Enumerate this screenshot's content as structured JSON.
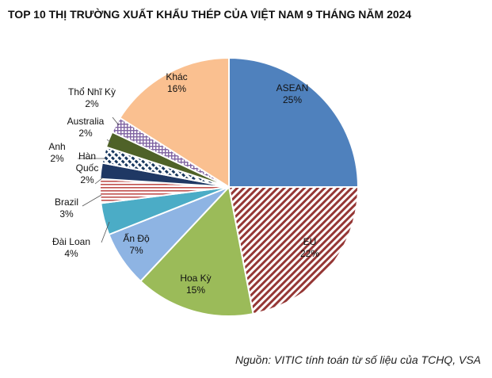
{
  "chart_data": {
    "type": "pie",
    "title": "TOP 10 THỊ TRƯỜNG XUẤT KHẨU THÉP CỦA VIỆT NAM 9 THÁNG NĂM 2024",
    "source": "Nguồn: VITIC tính toán từ số liệu của TCHQ, VSA",
    "slices": [
      {
        "label": "ASEAN",
        "value": 25,
        "text": "25%",
        "color": "#4f81bd",
        "pattern": "solid"
      },
      {
        "label": "EU",
        "value": 22,
        "text": "22%",
        "color": "#953735",
        "pattern": "diagonal"
      },
      {
        "label": "Hoa Kỳ",
        "value": 15,
        "text": "15%",
        "color": "#9bbb59",
        "pattern": "solid"
      },
      {
        "label": "Ấn Độ",
        "value": 7,
        "text": "7%",
        "color": "#8eb4e3",
        "pattern": "solid"
      },
      {
        "label": "Đài Loan",
        "value": 4,
        "text": "4%",
        "color": "#4bacc6",
        "pattern": "solid"
      },
      {
        "label": "Brazil",
        "value": 3,
        "text": "3%",
        "color": "#c0504d",
        "pattern": "horizontal"
      },
      {
        "label": "Hàn Quốc",
        "value": 2,
        "text": "2%",
        "color": "#1f3864",
        "pattern": "solid"
      },
      {
        "label": "Anh",
        "value": 2,
        "text": "2%",
        "color": "#17375e",
        "pattern": "dashed-diagonal"
      },
      {
        "label": "Australia",
        "value": 2,
        "text": "2%",
        "color": "#4f6228",
        "pattern": "solid"
      },
      {
        "label": "Thổ Nhĩ Kỳ",
        "value": 2,
        "text": "2%",
        "color": "#8064a2",
        "pattern": "grid"
      },
      {
        "label": "Khác",
        "value": 16,
        "text": "16%",
        "color": "#fac090",
        "pattern": "solid"
      }
    ]
  }
}
